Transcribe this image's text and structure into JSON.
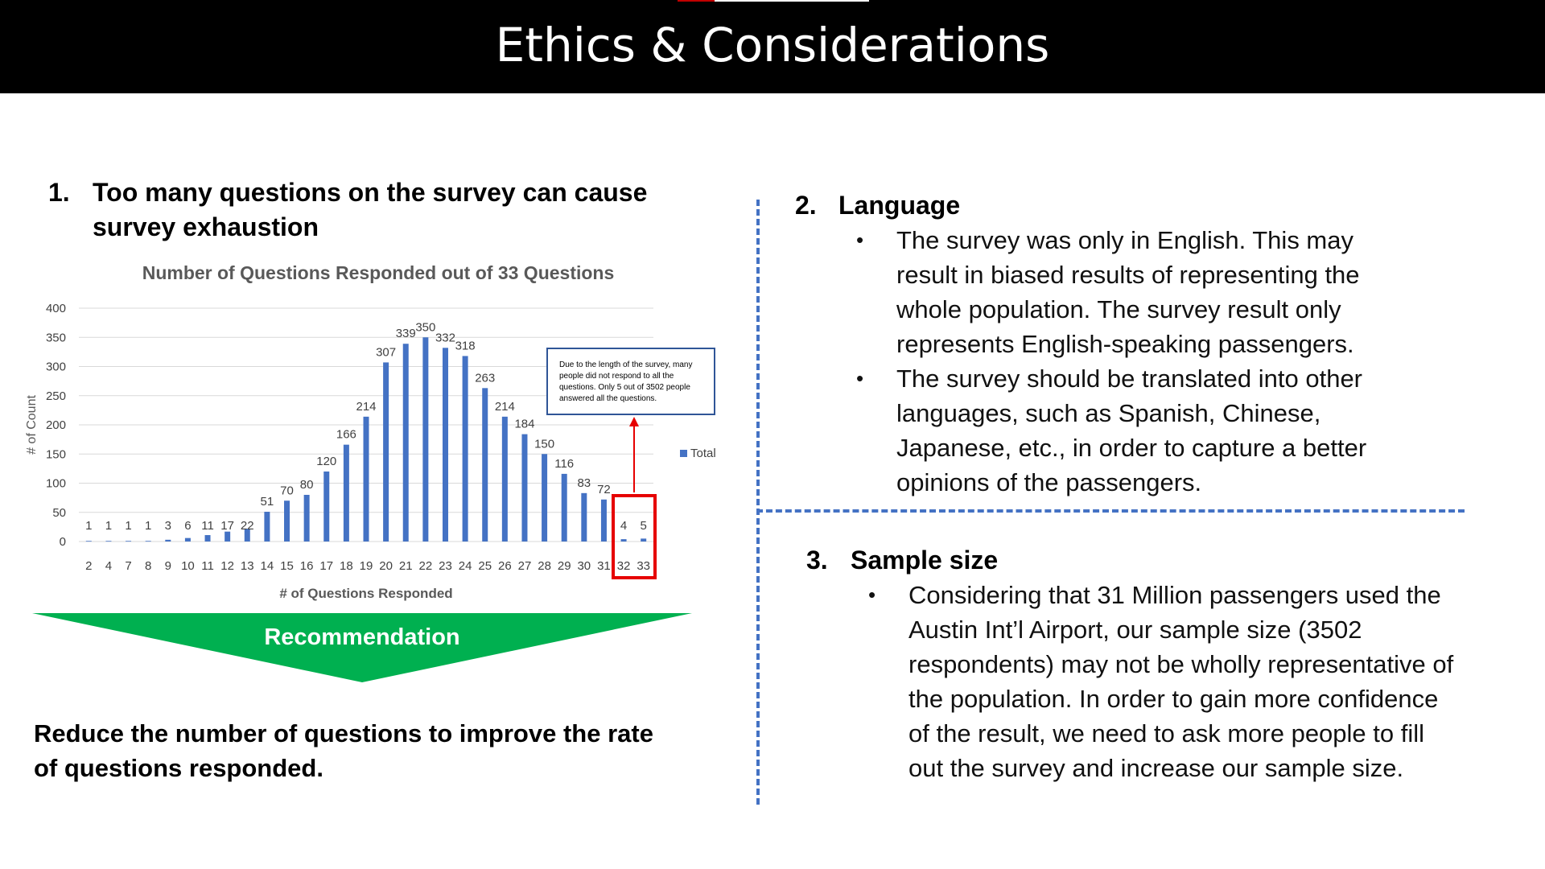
{
  "title": "Ethics & Considerations",
  "section1": {
    "number": "1.",
    "heading_line1": "Too many questions on the survey can cause",
    "heading_line2": "survey exhaustion"
  },
  "chart_data": {
    "type": "bar",
    "title": "Number of Questions Responded out of 33 Questions",
    "xlabel": "# of Questions Responded",
    "ylabel": "# of Count",
    "categories": [
      "2",
      "4",
      "7",
      "8",
      "9",
      "10",
      "11",
      "12",
      "13",
      "14",
      "15",
      "16",
      "17",
      "18",
      "19",
      "20",
      "21",
      "22",
      "23",
      "24",
      "25",
      "26",
      "27",
      "28",
      "29",
      "30",
      "31",
      "32",
      "33"
    ],
    "series": [
      {
        "name": "Total",
        "values": [
          1,
          1,
          1,
          1,
          3,
          6,
          11,
          17,
          22,
          51,
          70,
          80,
          120,
          166,
          214,
          307,
          339,
          350,
          332,
          318,
          263,
          214,
          184,
          150,
          116,
          83,
          72,
          4,
          5
        ]
      }
    ],
    "ylim": [
      0,
      400
    ],
    "yticks": [
      0,
      50,
      100,
      150,
      200,
      250,
      300,
      350,
      400
    ],
    "grid": true,
    "legend": "right",
    "bar_color": "#4472c4",
    "annotation": "Due to the length of the survey, many people did not respond to all the questions. Only 5 out of 3502 people answered all the questions.",
    "highlight": [
      "32",
      "33"
    ]
  },
  "recommendation": {
    "label": "Recommendation",
    "body": "Reduce the number of questions to improve the rate of questions responded.",
    "color": "#00b050"
  },
  "section2": {
    "number": "2.",
    "heading": "Language",
    "bullets": [
      "The survey was only in English. This may result in biased results of representing the whole population. The survey result only represents English-speaking passengers.",
      "The survey should be translated into other languages, such as Spanish, Chinese, Japanese, etc., in order to capture a better opinions of the passengers."
    ]
  },
  "section3": {
    "number": "3.",
    "heading": "Sample size",
    "bullets": [
      "Considering that 31 Million passengers used the Austin Int’l Airport, our sample size (3502 respondents) may not be wholly representative of the population. In order to gain more confidence of the result, we need to ask more people to fill out the survey and increase our sample size."
    ]
  },
  "bullet_glyph": "•",
  "divider_color": "#4472c4"
}
